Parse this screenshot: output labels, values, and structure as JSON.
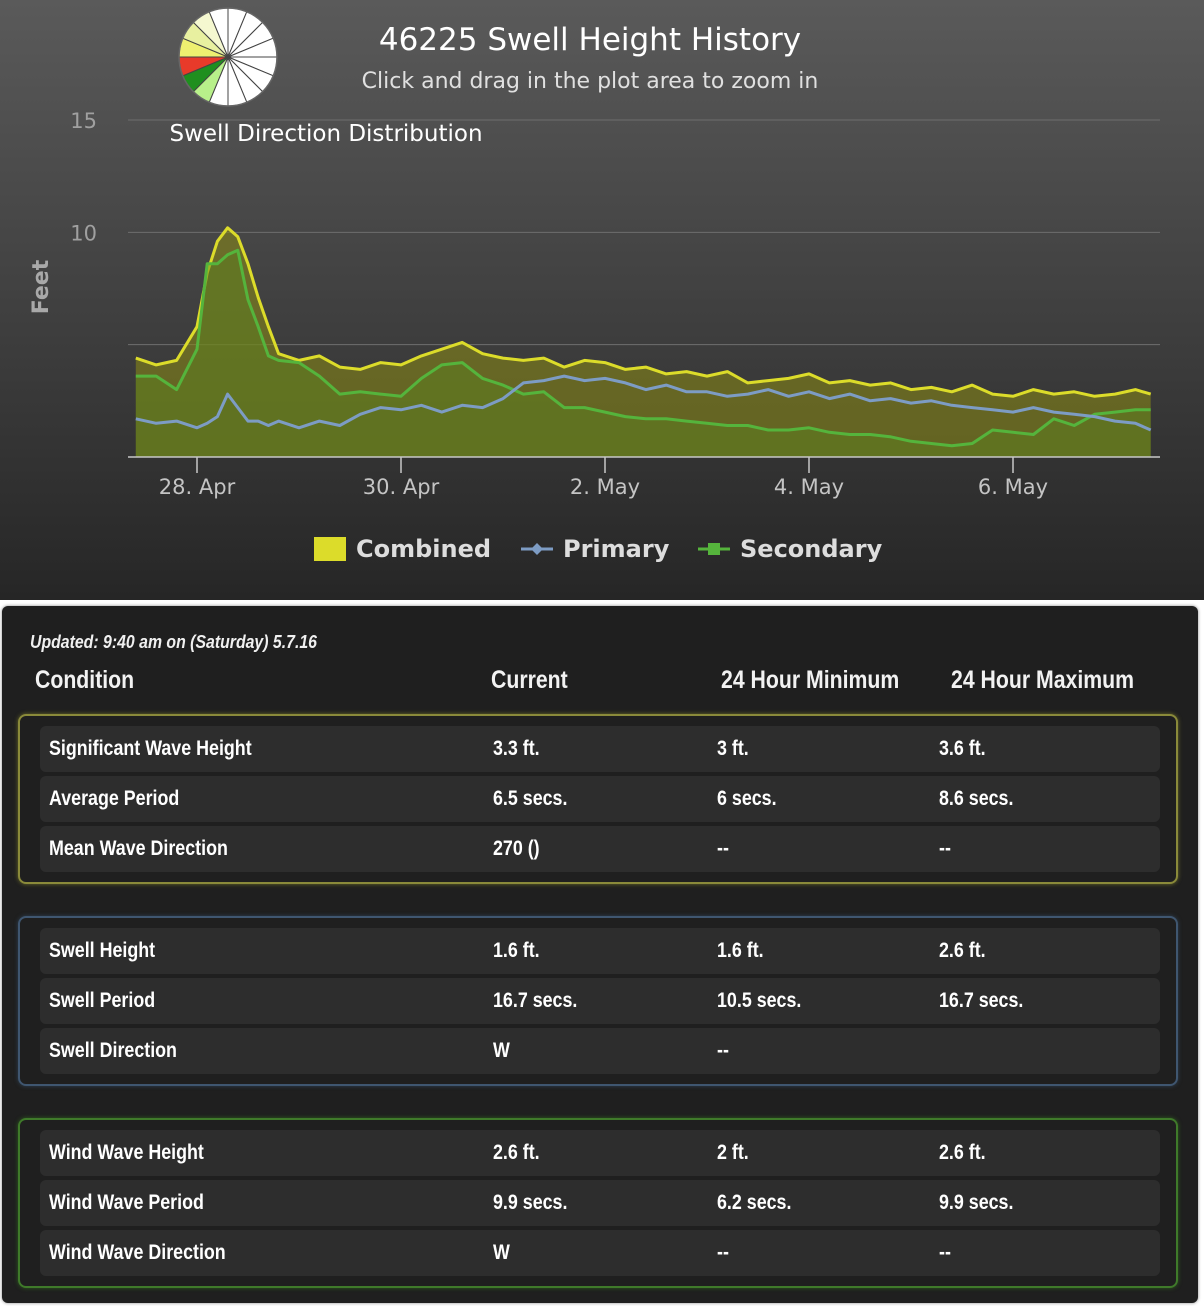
{
  "chart_data": {
    "type": "area",
    "title": "46225 Swell Height History",
    "subtitle": "Click and drag in the plot area to zoom in",
    "ylabel": "Feet",
    "ylim": [
      0,
      15
    ],
    "yticks": [
      "15",
      "10"
    ],
    "xticks": [
      "28. Apr",
      "30. Apr",
      "2. May",
      "4. May",
      "6. May"
    ],
    "xlim_days": [
      -0.7,
      9.4
    ],
    "legend": [
      {
        "name": "Combined",
        "color": "#dcdc2a"
      },
      {
        "name": "Primary",
        "color": "#7d9cc4"
      },
      {
        "name": "Secondary",
        "color": "#55b43c"
      }
    ],
    "inset": {
      "title": "Swell Direction Distribution",
      "sectors": 16,
      "colors": [
        "#ffffff",
        "#ffffff",
        "#ffffff",
        "#ffffff",
        "#ffffff",
        "#ffffff",
        "#ffffff",
        "#ffffff",
        "#ffffff",
        "#b8f08a",
        "#1f8f1f",
        "#e83a2a",
        "#eef070",
        "#e8f0a0",
        "#f5f8d0",
        "#ffffff"
      ]
    },
    "series": [
      {
        "name": "Combined",
        "color": "#dcdc2a",
        "x": [
          -0.6,
          -0.4,
          -0.2,
          0,
          0.1,
          0.2,
          0.3,
          0.4,
          0.5,
          0.6,
          0.7,
          0.8,
          1.0,
          1.2,
          1.4,
          1.6,
          1.8,
          2.0,
          2.2,
          2.4,
          2.6,
          2.8,
          3.0,
          3.2,
          3.4,
          3.6,
          3.8,
          4.0,
          4.2,
          4.4,
          4.6,
          4.8,
          5.0,
          5.2,
          5.4,
          5.6,
          5.8,
          6.0,
          6.2,
          6.4,
          6.6,
          6.8,
          7.0,
          7.2,
          7.4,
          7.6,
          7.8,
          8.0,
          8.2,
          8.4,
          8.6,
          8.8,
          9.0,
          9.2,
          9.35
        ],
        "values": [
          4.4,
          4.1,
          4.3,
          5.8,
          8.2,
          9.6,
          10.2,
          9.8,
          8.6,
          7.1,
          5.8,
          4.6,
          4.3,
          4.5,
          4.0,
          3.9,
          4.2,
          4.1,
          4.5,
          4.8,
          5.1,
          4.6,
          4.4,
          4.3,
          4.4,
          4.0,
          4.3,
          4.2,
          3.9,
          4.0,
          3.7,
          3.8,
          3.6,
          3.8,
          3.3,
          3.4,
          3.5,
          3.7,
          3.3,
          3.4,
          3.2,
          3.3,
          3.0,
          3.1,
          2.9,
          3.2,
          2.8,
          2.7,
          3.0,
          2.8,
          2.9,
          2.7,
          2.8,
          3.0,
          2.8
        ]
      },
      {
        "name": "Primary",
        "color": "#7d9cc4",
        "x": [
          -0.6,
          -0.4,
          -0.2,
          0,
          0.1,
          0.2,
          0.3,
          0.4,
          0.5,
          0.6,
          0.7,
          0.8,
          1.0,
          1.2,
          1.4,
          1.6,
          1.8,
          2.0,
          2.2,
          2.4,
          2.6,
          2.8,
          3.0,
          3.2,
          3.4,
          3.6,
          3.8,
          4.0,
          4.2,
          4.4,
          4.6,
          4.8,
          5.0,
          5.2,
          5.4,
          5.6,
          5.8,
          6.0,
          6.2,
          6.4,
          6.6,
          6.8,
          7.0,
          7.2,
          7.4,
          7.6,
          7.8,
          8.0,
          8.2,
          8.4,
          8.6,
          8.8,
          9.0,
          9.2,
          9.35
        ],
        "values": [
          1.7,
          1.5,
          1.6,
          1.3,
          1.5,
          1.8,
          2.8,
          2.2,
          1.6,
          1.6,
          1.4,
          1.6,
          1.3,
          1.6,
          1.4,
          1.9,
          2.2,
          2.1,
          2.3,
          2.0,
          2.3,
          2.2,
          2.6,
          3.3,
          3.4,
          3.6,
          3.4,
          3.5,
          3.3,
          3.0,
          3.2,
          2.9,
          2.9,
          2.7,
          2.8,
          3.0,
          2.7,
          2.9,
          2.6,
          2.8,
          2.5,
          2.6,
          2.4,
          2.5,
          2.3,
          2.2,
          2.1,
          2.0,
          2.2,
          2.0,
          1.9,
          1.8,
          1.6,
          1.5,
          1.2
        ]
      },
      {
        "name": "Secondary",
        "color": "#55b43c",
        "x": [
          -0.6,
          -0.4,
          -0.2,
          0,
          0.1,
          0.2,
          0.3,
          0.4,
          0.5,
          0.6,
          0.7,
          0.8,
          1.0,
          1.2,
          1.4,
          1.6,
          1.8,
          2.0,
          2.2,
          2.4,
          2.6,
          2.8,
          3.0,
          3.2,
          3.4,
          3.6,
          3.8,
          4.0,
          4.2,
          4.4,
          4.6,
          4.8,
          5.0,
          5.2,
          5.4,
          5.6,
          5.8,
          6.0,
          6.2,
          6.4,
          6.6,
          6.8,
          7.0,
          7.2,
          7.4,
          7.6,
          7.8,
          8.0,
          8.2,
          8.4,
          8.6,
          8.8,
          9.0,
          9.2,
          9.35
        ],
        "values": [
          3.6,
          3.6,
          3.0,
          4.8,
          8.6,
          8.6,
          9.0,
          9.2,
          7.0,
          5.8,
          4.5,
          4.3,
          4.2,
          3.6,
          2.8,
          2.9,
          2.8,
          2.7,
          3.5,
          4.1,
          4.2,
          3.5,
          3.2,
          2.8,
          2.9,
          2.2,
          2.2,
          2.0,
          1.8,
          1.7,
          1.7,
          1.6,
          1.5,
          1.4,
          1.4,
          1.2,
          1.2,
          1.3,
          1.1,
          1.0,
          1.0,
          0.9,
          0.7,
          0.6,
          0.5,
          0.6,
          1.2,
          1.1,
          1.0,
          1.7,
          1.4,
          1.9,
          2.0,
          2.1,
          2.1
        ]
      }
    ]
  },
  "table": {
    "updated": "Updated: 9:40 am on (Saturday) 5.7.16",
    "headers": [
      "Condition",
      "Current",
      "24 Hour Minimum",
      "24 Hour Maximum"
    ],
    "groups": [
      {
        "name": "combined",
        "rows": [
          [
            "Significant Wave Height",
            "3.3 ft.",
            "3 ft.",
            "3.6 ft."
          ],
          [
            "Average Period",
            "6.5 secs.",
            "6 secs.",
            "8.6 secs."
          ],
          [
            "Mean Wave Direction",
            "270 ()",
            "--",
            "--"
          ]
        ]
      },
      {
        "name": "swell",
        "rows": [
          [
            "Swell Height",
            "1.6 ft.",
            "1.6 ft.",
            "2.6 ft."
          ],
          [
            "Swell Period",
            "16.7 secs.",
            "10.5 secs.",
            "16.7 secs."
          ],
          [
            "Swell Direction",
            "W",
            "--",
            ""
          ]
        ]
      },
      {
        "name": "wind",
        "rows": [
          [
            "Wind Wave Height",
            "2.6 ft.",
            "2 ft.",
            "2.6 ft."
          ],
          [
            "Wind Wave Period",
            "9.9 secs.",
            "6.2 secs.",
            "9.9 secs."
          ],
          [
            "Wind Wave Direction",
            "W",
            "--",
            "--"
          ]
        ]
      }
    ]
  }
}
